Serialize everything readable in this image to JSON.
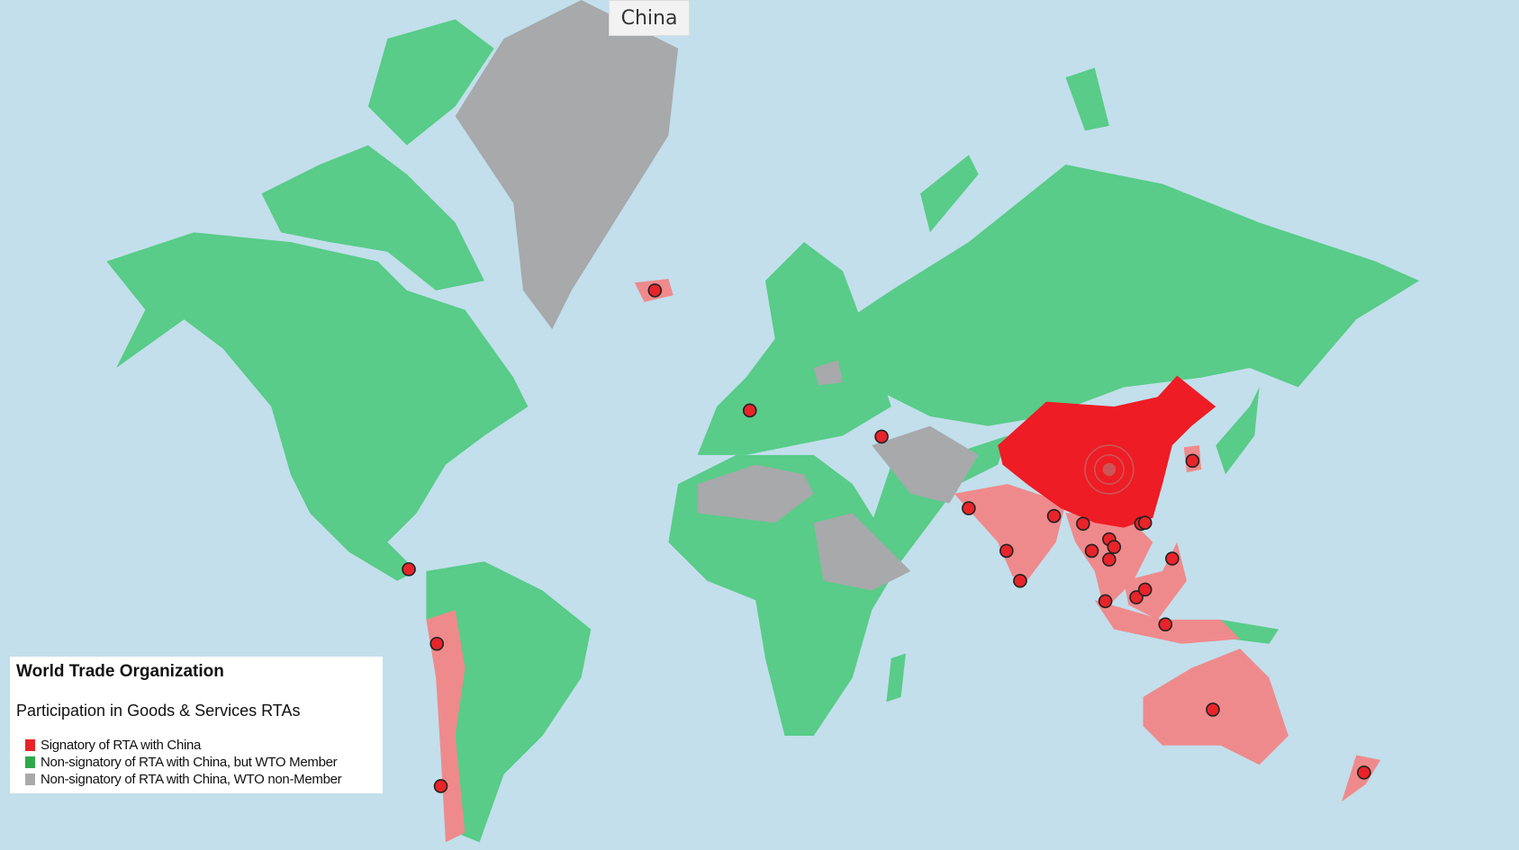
{
  "tooltip": {
    "label": "China"
  },
  "legend": {
    "title": "World Trade Organization",
    "subtitle": "Participation in Goods & Services RTAs",
    "items": [
      {
        "label": "Signatory of RTA with China",
        "color": "#e8242a"
      },
      {
        "label": "Non-signatory of RTA with China, but WTO Member",
        "color": "#2fa84a"
      },
      {
        "label": "Non-signatory of RTA with China, WTO non-Member",
        "color": "#a9a9a9"
      }
    ]
  },
  "colors": {
    "ocean": "#c2dfeb",
    "wto_member": "#58cc88",
    "non_member": "#a7a9ab",
    "signatory": "#ef8a8c",
    "china": "#ee1c24",
    "marker": "#e8242a"
  },
  "focus_country": "China",
  "signatory_markers": [
    "Iceland",
    "Switzerland",
    "Georgia",
    "Costa Rica",
    "Peru",
    "Chile",
    "Pakistan",
    "Maldives",
    "Sri Lanka",
    "Nepal",
    "Bangladesh",
    "Myanmar",
    "Laos",
    "Thailand",
    "Cambodia",
    "Vietnam",
    "Hong Kong",
    "Macao",
    "Philippines",
    "Singapore",
    "Malaysia",
    "Brunei",
    "Indonesia",
    "South Korea",
    "Australia",
    "New Zealand"
  ]
}
